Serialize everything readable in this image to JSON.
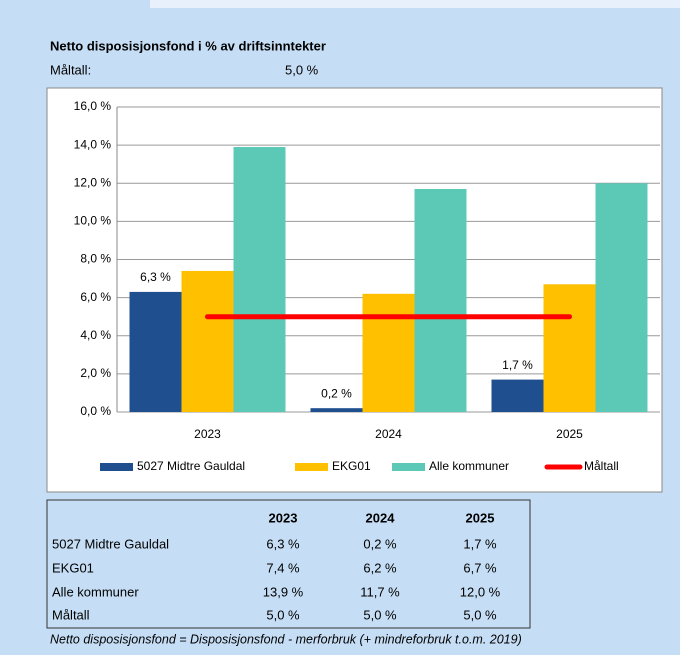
{
  "chart_data": {
    "type": "bar",
    "title": "Netto disposisjonsfond i % av driftsinntekter",
    "annotations": [
      "Måltall:",
      "5,0 %"
    ],
    "categories": [
      "2023",
      "2024",
      "2025"
    ],
    "series": [
      {
        "name": "5027 Midtre Gauldal",
        "color": "#1f4f8f",
        "values": [
          6.3,
          0.2,
          1.7
        ],
        "value_labels": [
          "6,3 %",
          "0,2 %",
          "1,7 %"
        ]
      },
      {
        "name": "EKG01",
        "color": "#ffc000",
        "values": [
          7.4,
          6.2,
          6.7
        ]
      },
      {
        "name": "Alle kommuner",
        "color": "#5cc8b6",
        "values": [
          13.9,
          11.7,
          12.0
        ]
      },
      {
        "name": "Måltall",
        "color": "#ff0000",
        "type": "line",
        "values": [
          5.0,
          5.0,
          5.0
        ]
      }
    ],
    "ylim": [
      0,
      16
    ],
    "yticks": [
      {
        "value": 0,
        "label": "0,0 %"
      },
      {
        "value": 2,
        "label": "2,0 %"
      },
      {
        "value": 4,
        "label": "4,0 %"
      },
      {
        "value": 6,
        "label": "6,0 %"
      },
      {
        "value": 8,
        "label": "8,0 %"
      },
      {
        "value": 10,
        "label": "10,0 %"
      },
      {
        "value": 12,
        "label": "12,0 %"
      },
      {
        "value": 14,
        "label": "14,0 %"
      },
      {
        "value": 16,
        "label": "16,0 %"
      }
    ],
    "grid": true,
    "legend": "bottom"
  },
  "table": {
    "header": [
      "2023",
      "2024",
      "2025"
    ],
    "rows": [
      [
        "5027 Midtre Gauldal",
        "6,3 %",
        "0,2 %",
        "1,7 %"
      ],
      [
        "EKG01",
        "7,4 %",
        "6,2 %",
        "6,7 %"
      ],
      [
        "Alle kommuner",
        "13,9 %",
        "11,7 %",
        "12,0 %"
      ],
      [
        "Måltall",
        "5,0 %",
        "5,0 %",
        "5,0 %"
      ]
    ]
  },
  "footnote": "Netto disposisjonsfond = Disposisjonsfond - merforbruk (+ mindreforbruk t.o.m. 2019)"
}
